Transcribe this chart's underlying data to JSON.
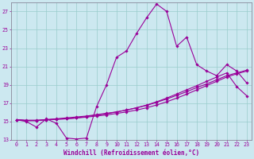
{
  "background_color": "#cce8f0",
  "grid_color": "#99cccc",
  "line_color": "#990099",
  "xlabel": "Windchill (Refroidissement éolien,°C)",
  "xlabel_fontsize": 5.5,
  "tick_fontsize": 4.8,
  "xlim": [
    -0.5,
    23.5
  ],
  "ylim": [
    13,
    28
  ],
  "yticks": [
    13,
    15,
    17,
    19,
    21,
    23,
    25,
    27
  ],
  "xticks": [
    0,
    1,
    2,
    3,
    4,
    5,
    6,
    7,
    8,
    9,
    10,
    11,
    12,
    13,
    14,
    15,
    16,
    17,
    18,
    19,
    20,
    21,
    22,
    23
  ],
  "series1_x": [
    0,
    1,
    2,
    3,
    4,
    5,
    6,
    7,
    8,
    9,
    10,
    11,
    12,
    13,
    14,
    15,
    16,
    17,
    18,
    19,
    20,
    21,
    22,
    23
  ],
  "series1_y": [
    15.2,
    15.0,
    14.4,
    15.3,
    14.8,
    13.2,
    13.1,
    13.2,
    16.6,
    19.0,
    22.0,
    22.7,
    24.6,
    26.3,
    27.8,
    27.0,
    23.2,
    24.2,
    21.2,
    20.5,
    20.0,
    21.2,
    20.5,
    19.2
  ],
  "series2_x": [
    0,
    1,
    2,
    3,
    4,
    5,
    6,
    7,
    8,
    9,
    10,
    11,
    12,
    13,
    14,
    15,
    16,
    17,
    18,
    19,
    20,
    21,
    22,
    23
  ],
  "series2_y": [
    15.2,
    15.1,
    15.1,
    15.2,
    15.25,
    15.3,
    15.4,
    15.55,
    15.7,
    15.85,
    16.05,
    16.25,
    16.5,
    16.75,
    17.1,
    17.45,
    17.85,
    18.25,
    18.7,
    19.1,
    19.55,
    20.0,
    20.3,
    20.6
  ],
  "series3_x": [
    0,
    1,
    2,
    3,
    4,
    5,
    6,
    7,
    8,
    9,
    10,
    11,
    12,
    13,
    14,
    15,
    16,
    17,
    18,
    19,
    20,
    21,
    22,
    23
  ],
  "series3_y": [
    15.2,
    15.15,
    15.15,
    15.2,
    15.25,
    15.3,
    15.38,
    15.48,
    15.6,
    15.72,
    15.88,
    16.05,
    16.25,
    16.5,
    16.8,
    17.15,
    17.55,
    17.98,
    18.45,
    18.92,
    19.38,
    19.85,
    20.2,
    20.5
  ],
  "series4_x": [
    0,
    1,
    2,
    3,
    4,
    5,
    6,
    7,
    8,
    9,
    10,
    11,
    12,
    13,
    14,
    15,
    16,
    17,
    18,
    19,
    20,
    21,
    22,
    23
  ],
  "series4_y": [
    15.2,
    15.1,
    15.1,
    15.2,
    15.3,
    15.4,
    15.5,
    15.6,
    15.75,
    15.9,
    16.05,
    16.25,
    16.5,
    16.8,
    17.15,
    17.55,
    18.0,
    18.45,
    18.9,
    19.38,
    19.85,
    20.3,
    18.8,
    17.8
  ]
}
